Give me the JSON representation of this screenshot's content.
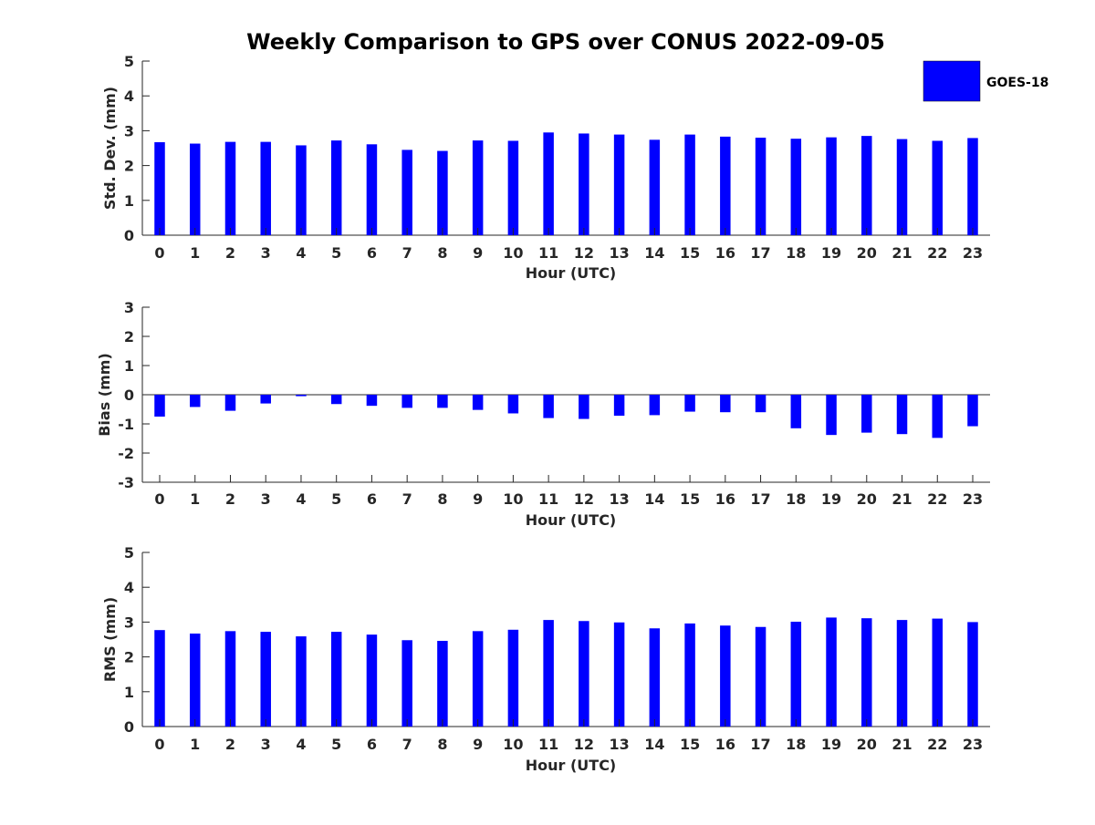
{
  "title": "Weekly Comparison to GPS over CONUS 2022-09-05",
  "legend": {
    "label": "GOES-18",
    "color": "#0000ff",
    "placement": "top-right"
  },
  "bar_color": "#0000ff",
  "chart_data": [
    {
      "type": "bar",
      "title": "Weekly Comparison to GPS over CONUS 2022-09-05",
      "xlabel": "Hour (UTC)",
      "ylabel": "Std. Dev. (mm)",
      "categories": [
        "0",
        "1",
        "2",
        "3",
        "4",
        "5",
        "6",
        "7",
        "8",
        "9",
        "10",
        "11",
        "12",
        "13",
        "14",
        "15",
        "16",
        "17",
        "18",
        "19",
        "20",
        "21",
        "22",
        "23"
      ],
      "values": [
        2.67,
        2.63,
        2.68,
        2.68,
        2.58,
        2.72,
        2.61,
        2.45,
        2.42,
        2.72,
        2.71,
        2.95,
        2.92,
        2.89,
        2.74,
        2.89,
        2.83,
        2.8,
        2.77,
        2.81,
        2.85,
        2.76,
        2.71,
        2.79
      ],
      "ylim": [
        0,
        5
      ],
      "yticks": [
        0,
        1,
        2,
        3,
        4,
        5
      ],
      "series_name": "GOES-18"
    },
    {
      "type": "bar",
      "xlabel": "Hour (UTC)",
      "ylabel": "Bias (mm)",
      "categories": [
        "0",
        "1",
        "2",
        "3",
        "4",
        "5",
        "6",
        "7",
        "8",
        "9",
        "10",
        "11",
        "12",
        "13",
        "14",
        "15",
        "16",
        "17",
        "18",
        "19",
        "20",
        "21",
        "22",
        "23"
      ],
      "values": [
        -0.75,
        -0.42,
        -0.55,
        -0.3,
        -0.05,
        -0.32,
        -0.38,
        -0.45,
        -0.45,
        -0.52,
        -0.64,
        -0.8,
        -0.83,
        -0.72,
        -0.7,
        -0.58,
        -0.6,
        -0.6,
        -1.15,
        -1.38,
        -1.3,
        -1.35,
        -1.48,
        -1.08
      ],
      "ylim": [
        -3,
        3
      ],
      "yticks": [
        -3,
        -2,
        -1,
        0,
        1,
        2,
        3
      ],
      "zero_line": true,
      "series_name": "GOES-18"
    },
    {
      "type": "bar",
      "xlabel": "Hour (UTC)",
      "ylabel": "RMS (mm)",
      "categories": [
        "0",
        "1",
        "2",
        "3",
        "4",
        "5",
        "6",
        "7",
        "8",
        "9",
        "10",
        "11",
        "12",
        "13",
        "14",
        "15",
        "16",
        "17",
        "18",
        "19",
        "20",
        "21",
        "22",
        "23"
      ],
      "values": [
        2.77,
        2.67,
        2.74,
        2.72,
        2.59,
        2.72,
        2.64,
        2.48,
        2.46,
        2.74,
        2.78,
        3.06,
        3.03,
        2.99,
        2.82,
        2.96,
        2.9,
        2.86,
        3.01,
        3.13,
        3.11,
        3.06,
        3.1,
        3.0
      ],
      "ylim": [
        0,
        5
      ],
      "yticks": [
        0,
        1,
        2,
        3,
        4,
        5
      ],
      "series_name": "GOES-18"
    }
  ]
}
